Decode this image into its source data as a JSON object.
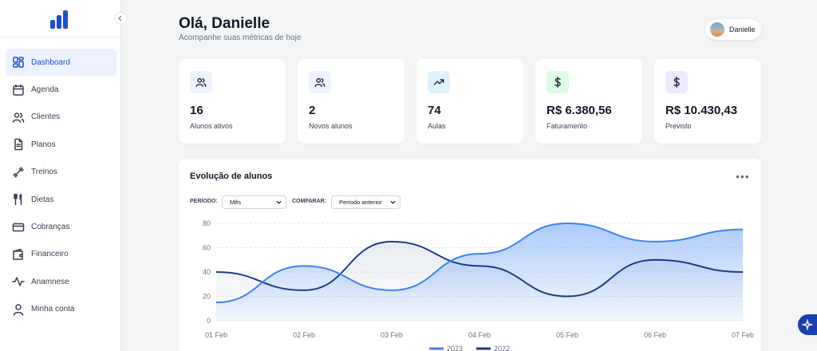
{
  "header": {
    "greeting": "Olá, Danielle",
    "subtitle": "Acompanhe suas métricas de hoje"
  },
  "user": {
    "name": "Danielle"
  },
  "sidebar": {
    "items": [
      {
        "label": "Dashboard",
        "icon": "dashboard-icon",
        "active": true
      },
      {
        "label": "Agenda",
        "icon": "calendar-icon"
      },
      {
        "label": "Clientes",
        "icon": "users-icon"
      },
      {
        "label": "Planos",
        "icon": "document-icon"
      },
      {
        "label": "Treinos",
        "icon": "dumbbell-icon"
      },
      {
        "label": "Dietas",
        "icon": "fork-knife-icon"
      },
      {
        "label": "Cobranças",
        "icon": "credit-card-icon"
      },
      {
        "label": "Financeiro",
        "icon": "wallet-icon"
      },
      {
        "label": "Anamnese",
        "icon": "activity-icon"
      },
      {
        "label": "Minha conta",
        "icon": "user-icon"
      }
    ]
  },
  "stats": [
    {
      "value": "16",
      "label": "Alunos ativos",
      "icon": "users-icon",
      "icon_bg": "#eef2ff",
      "icon_color": "#1f2937"
    },
    {
      "value": "2",
      "label": "Novos alunos",
      "icon": "users-icon",
      "icon_bg": "#eef2ff",
      "icon_color": "#1f2937"
    },
    {
      "value": "74",
      "label": "Aulas",
      "icon": "trending-up-icon",
      "icon_bg": "#e0f2fe",
      "icon_color": "#1f2937"
    },
    {
      "value": "R$ 6.380,56",
      "label": "Faturamento",
      "icon": "dollar-icon",
      "icon_bg": "#dcfce7",
      "icon_color": "#1f2937"
    },
    {
      "value": "R$ 10.430,43",
      "label": "Previsto",
      "icon": "dollar-icon",
      "icon_bg": "#ede9fe",
      "icon_color": "#1f2937"
    }
  ],
  "chart_card": {
    "title": "Evolução de alunos",
    "period_label": "PERÍODO:",
    "period_value": "Mês",
    "compare_label": "COMPARAR:",
    "compare_value": "Período anterior"
  },
  "chart_data": {
    "type": "area",
    "categories": [
      "01 Feb",
      "02 Feb",
      "03 Feb",
      "04 Feb",
      "05 Feb",
      "06 Feb",
      "07 Feb"
    ],
    "ylim": [
      0,
      80
    ],
    "yticks": [
      0,
      20,
      40,
      60,
      80
    ],
    "grid": true,
    "legend": "bottom-center",
    "series": [
      {
        "name": "2023",
        "values": [
          15,
          45,
          25,
          55,
          80,
          65,
          75
        ],
        "color": "#3b82f6"
      },
      {
        "name": "2022",
        "values": [
          40,
          25,
          65,
          45,
          20,
          50,
          40
        ],
        "color": "#1e3a8a"
      }
    ]
  },
  "colors": {
    "accent": "#1d4ed8",
    "active_bg": "#eef2ff"
  }
}
